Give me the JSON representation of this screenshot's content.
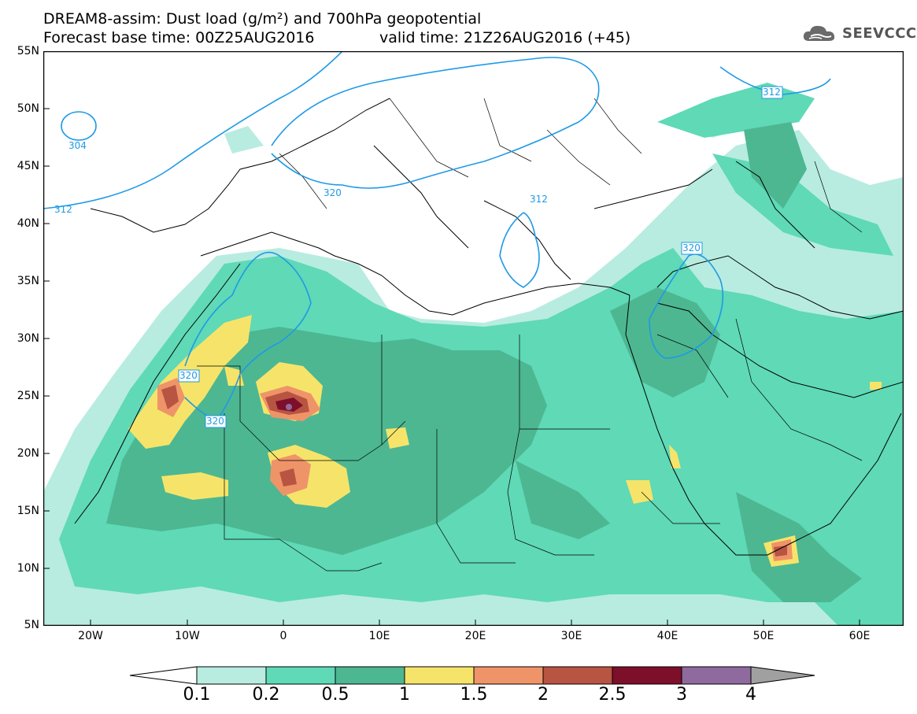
{
  "header": {
    "line1": "DREAM8-assim: Dust load (g/m²) and 700hPa geopotential",
    "line2_left": "Forecast base time: 00Z25AUG2016",
    "line2_right": "valid time: 21Z26AUG2016 (+45)"
  },
  "logo": {
    "text": "SEEVCCC",
    "icon": "cloud-icon"
  },
  "axes": {
    "lat_labels": [
      "55N",
      "50N",
      "45N",
      "40N",
      "35N",
      "30N",
      "25N",
      "20N",
      "15N",
      "10N",
      "5N"
    ],
    "lon_labels": [
      "20W",
      "10W",
      "0",
      "10E",
      "20E",
      "30E",
      "40E",
      "50E",
      "60E"
    ]
  },
  "contours": {
    "labels": [
      "304",
      "312",
      "320",
      "320",
      "320",
      "312",
      "320",
      "312"
    ]
  },
  "colorbar": {
    "levels": [
      "0.1",
      "0.2",
      "0.5",
      "1",
      "1.5",
      "2",
      "2.5",
      "3",
      "4"
    ],
    "colors": [
      "#ffffff",
      "#b8ece0",
      "#5fd9b6",
      "#4db792",
      "#f6e46a",
      "#ef9468",
      "#b85442",
      "#7d0f2b",
      "#8e6a9e",
      "#a0a0a0"
    ]
  },
  "colors": {
    "contour": "#1e9ae6",
    "coast": "#000000",
    "dust_low": "#b8ece0",
    "dust_mid": "#5fd9b6",
    "dust_high": "#4db792",
    "dust_yellow": "#f6e46a",
    "dust_orange": "#ef9468",
    "dust_brown": "#b85442",
    "dust_maroon": "#7d0f2b",
    "dust_purple": "#8e6a9e"
  }
}
